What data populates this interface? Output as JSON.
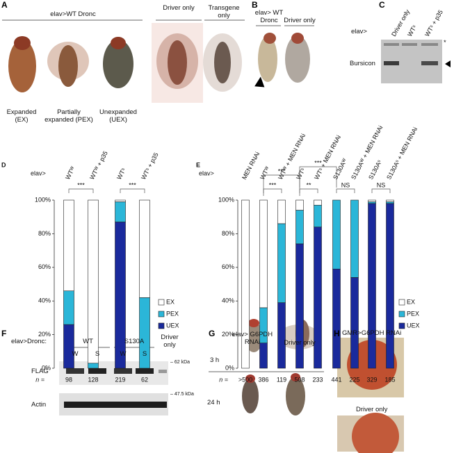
{
  "panels": {
    "A": {
      "letter": "A",
      "header": "elav>WT Dronc",
      "driver": "Driver only",
      "transgene": "Transgene only",
      "phenotypes": [
        "Expanded (EX)",
        "Partially expanded (PEX)",
        "Unexpanded (UEX)"
      ]
    },
    "B": {
      "letter": "B",
      "header": "elav> WT Dronc",
      "driver": "Driver only"
    },
    "C": {
      "letter": "C",
      "prefix": "elav>",
      "lanes": [
        "Driver only",
        "WTˢ",
        "WTˢ + p35"
      ],
      "band": "Bursicon",
      "star": "*"
    },
    "F": {
      "letter": "F",
      "prefix": "elav>Dronc:",
      "groups": [
        "WT",
        "S130A"
      ],
      "driver": "Driver only",
      "lanes": [
        "W",
        "S",
        "W",
        "S"
      ],
      "rows": [
        "FLAG",
        "Actin"
      ],
      "markers": [
        "– 62 kDa",
        "– 47.5 kDa"
      ]
    },
    "G": {
      "letter": "G",
      "header": "elav> G6PDH RNAi",
      "driver": "Driver only",
      "times": [
        "3 h",
        "24 h"
      ]
    },
    "H": {
      "letter": "H",
      "header": "GMR>G6PDH RNAi",
      "driver": "Driver only"
    }
  },
  "chart_data": [
    {
      "type": "bar",
      "panel": "D",
      "prefix": "elav>",
      "categories": [
        "WTᵂ",
        "WTᵂ + p35",
        "WTˢ",
        "WTˢ + p35"
      ],
      "series": [
        {
          "name": "UEX",
          "color": "#1a2a9c",
          "values": [
            26,
            0,
            87,
            0
          ]
        },
        {
          "name": "PEX",
          "color": "#2bb6d8",
          "values": [
            20,
            3,
            12,
            42
          ]
        },
        {
          "name": "EX",
          "color": "#ffffff",
          "values": [
            54,
            97,
            1,
            58
          ]
        }
      ],
      "ylim": [
        0,
        100
      ],
      "yticks": [
        {
          "value": 0,
          "label": "0%"
        },
        {
          "value": 20,
          "label": "20%"
        },
        {
          "value": 40,
          "label": "40%"
        },
        {
          "value": 60,
          "label": "60%"
        },
        {
          "value": 80,
          "label": "80%"
        },
        {
          "value": 100,
          "label": "100%"
        }
      ],
      "n_label": "n =",
      "n": [
        98,
        128,
        219,
        62
      ],
      "significance": [
        {
          "between": [
            0,
            1
          ],
          "label": "***"
        },
        {
          "between": [
            2,
            3
          ],
          "label": "***"
        }
      ]
    },
    {
      "type": "bar",
      "panel": "E",
      "prefix": "elav>",
      "categories": [
        "MEN RNAi",
        "WTᵂ",
        "WTᵂ + MEN RNAi",
        "WTˢ",
        "WTˢ + MEN RNAi",
        "S130Aᵂ",
        "S130Aᵂ + MEN RNAi",
        "S130Aˢ",
        "S130Aˢ + MEN RNAi"
      ],
      "series": [
        {
          "name": "UEX",
          "color": "#1a2a9c",
          "values": [
            0,
            15,
            39,
            74,
            84,
            59,
            54,
            98,
            98
          ]
        },
        {
          "name": "PEX",
          "color": "#2bb6d8",
          "values": [
            0,
            21,
            47,
            20,
            13,
            41,
            46,
            1,
            1
          ]
        },
        {
          "name": "EX",
          "color": "#ffffff",
          "values": [
            100,
            64,
            14,
            6,
            3,
            0,
            0,
            1,
            1
          ]
        }
      ],
      "ylim": [
        0,
        100
      ],
      "yticks": [
        {
          "value": 0,
          "label": "0%"
        },
        {
          "value": 20,
          "label": "20%"
        },
        {
          "value": 40,
          "label": "40%"
        },
        {
          "value": 60,
          "label": "60%"
        },
        {
          "value": 80,
          "label": "80%"
        },
        {
          "value": 100,
          "label": "100%"
        }
      ],
      "n_label": "n =",
      "n": [
        ">500",
        386,
        119,
        508,
        233,
        441,
        225,
        329,
        185
      ],
      "significance": [
        {
          "between": [
            1,
            2
          ],
          "label": "***"
        },
        {
          "between": [
            3,
            4
          ],
          "label": "**"
        },
        {
          "between": [
            5,
            6
          ],
          "label": "NS"
        },
        {
          "between": [
            7,
            8
          ],
          "label": "NS"
        },
        {
          "between": [
            1,
            3
          ],
          "label": "***"
        },
        {
          "between": [
            3,
            5
          ],
          "label": "***"
        }
      ]
    }
  ]
}
